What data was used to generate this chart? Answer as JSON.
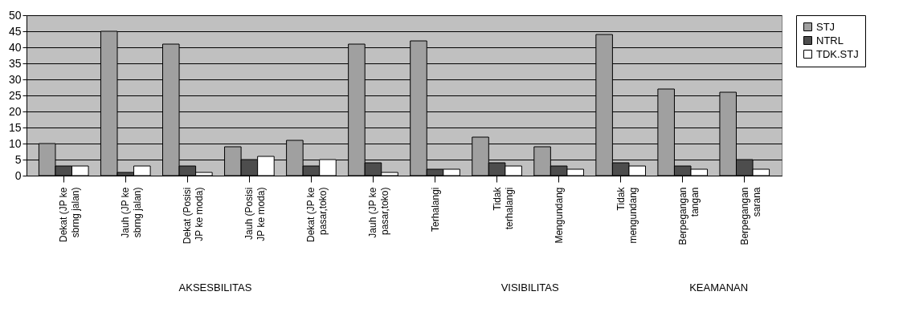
{
  "chart_data": {
    "type": "bar",
    "categories": [
      "Dekat (JP ke sbrng jalan)",
      "Jauh (JP ke sbrng jalan)",
      "Dekat (Posisi JP ke moda)",
      "Jauh (Posisi JP ke moda)",
      "Dekat (JP ke pasar,toko)",
      "Jauh (JP ke pasar,toko)",
      "Terhalangi",
      "Tidak terhalangi",
      "Mengundang",
      "Tidak mengundang",
      "Berpegangan tangan",
      "Berpegangan sarana"
    ],
    "series": [
      {
        "name": "STJ",
        "color": "#a0a0a0",
        "values": [
          10,
          45,
          41,
          9,
          11,
          41,
          42,
          12,
          9,
          44,
          27,
          26
        ]
      },
      {
        "name": "NTRL",
        "color": "#4d4d4d",
        "values": [
          3,
          1,
          3,
          5,
          3,
          4,
          2,
          4,
          3,
          4,
          3,
          5
        ]
      },
      {
        "name": "TDK.STJ",
        "color": "#ffffff",
        "values": [
          3,
          3,
          1,
          6,
          5,
          1,
          2,
          3,
          2,
          3,
          2,
          2
        ]
      }
    ],
    "annotations": [
      "AKSESBILITAS",
      "VISIBILITAS",
      "KEAMANAN"
    ],
    "ylim": [
      0,
      50
    ],
    "yticks": [
      0,
      5,
      10,
      15,
      20,
      25,
      30,
      35,
      40,
      45,
      50
    ],
    "grid": "y",
    "legend": "right"
  }
}
